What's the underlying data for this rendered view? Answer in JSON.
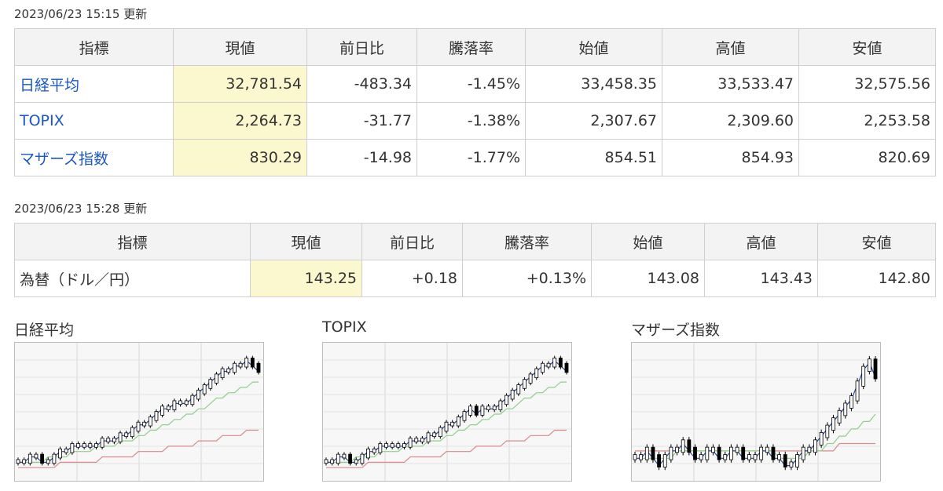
{
  "stock_section": {
    "timestamp": "2023/06/23 15:15 更新",
    "headers": [
      "指標",
      "現値",
      "前日比",
      "騰落率",
      "始値",
      "高値",
      "安値"
    ],
    "rows": [
      {
        "name": "日経平均",
        "current": "32,781.54",
        "change": "-483.34",
        "rate": "-1.45%",
        "open": "33,458.35",
        "high": "33,533.47",
        "low": "32,575.56"
      },
      {
        "name": "TOPIX",
        "current": "2,264.73",
        "change": "-31.77",
        "rate": "-1.38%",
        "open": "2,307.67",
        "high": "2,309.60",
        "low": "2,253.58"
      },
      {
        "name": "マザーズ指数",
        "current": "830.29",
        "change": "-14.98",
        "rate": "-1.77%",
        "open": "854.51",
        "high": "854.93",
        "low": "820.69"
      }
    ]
  },
  "fx_section": {
    "timestamp": "2023/06/23 15:28 更新",
    "headers": [
      "指標",
      "現値",
      "前日比",
      "騰落率",
      "始値",
      "高値",
      "安値"
    ],
    "row": {
      "name": "為替（ドル／円）",
      "current": "143.25",
      "change": "+0.18",
      "rate": "+0.13%",
      "open": "143.08",
      "high": "143.43",
      "low": "142.80"
    }
  },
  "charts": {
    "nikkei_title": "日経平均",
    "topix_title": "TOPIX",
    "mothers_title": "マザーズ指数"
  },
  "colors": {
    "link": "#1a56c4",
    "negative": "#1a56c4",
    "positive": "#e0201a",
    "current_bg": "#fbf7cf",
    "header_bg": "#f3f3f3",
    "ma_short": "#2a4a9e",
    "ma_mid": "#8fcf8a",
    "ma_long": "#d98a8a"
  },
  "chart_data": [
    {
      "type": "line",
      "series": [
        {
          "values": [
            2,
            2,
            3,
            3,
            2,
            2,
            3,
            4,
            4,
            5,
            5,
            5,
            5,
            5,
            6,
            6,
            6,
            7,
            7,
            8,
            9,
            9,
            10,
            11,
            12,
            12,
            13,
            13,
            13,
            14,
            15,
            16,
            17,
            18,
            19,
            19,
            20,
            20,
            21,
            20,
            19
          ]
        },
        {
          "values": [
            2,
            2,
            2,
            2,
            2,
            3,
            3,
            3,
            3,
            4,
            4,
            4,
            4,
            5,
            5,
            5,
            5,
            6,
            6,
            6,
            7,
            7,
            8,
            8,
            9,
            9,
            10,
            10,
            11,
            11,
            12,
            12,
            13,
            14,
            14,
            15,
            15,
            16,
            16,
            17,
            17
          ]
        },
        {
          "values": [
            1,
            1,
            1,
            1,
            1,
            1,
            1,
            2,
            2,
            2,
            2,
            2,
            2,
            2,
            3,
            3,
            3,
            3,
            3,
            3,
            4,
            4,
            4,
            4,
            4,
            5,
            5,
            5,
            5,
            5,
            6,
            6,
            6,
            6,
            7,
            7,
            7,
            7,
            8,
            8,
            8
          ]
        }
      ]
    },
    {
      "type": "line",
      "series": [
        {
          "values": [
            2,
            2,
            3,
            3,
            2,
            2,
            3,
            4,
            4,
            5,
            5,
            5,
            5,
            5,
            6,
            6,
            6,
            7,
            7,
            8,
            9,
            9,
            10,
            11,
            12,
            11,
            12,
            12,
            12,
            13,
            14,
            15,
            16,
            17,
            18,
            19,
            20,
            20,
            21,
            20,
            19
          ]
        },
        {
          "values": [
            2,
            2,
            2,
            2,
            2,
            3,
            3,
            3,
            3,
            4,
            4,
            4,
            4,
            5,
            5,
            5,
            5,
            6,
            6,
            6,
            7,
            7,
            8,
            8,
            9,
            9,
            10,
            10,
            11,
            11,
            12,
            12,
            13,
            14,
            14,
            15,
            15,
            16,
            16,
            17,
            17
          ]
        },
        {
          "values": [
            1,
            1,
            1,
            1,
            1,
            1,
            1,
            2,
            2,
            2,
            2,
            2,
            2,
            2,
            3,
            3,
            3,
            3,
            3,
            3,
            4,
            4,
            4,
            4,
            4,
            5,
            5,
            5,
            5,
            5,
            6,
            6,
            6,
            6,
            7,
            7,
            7,
            7,
            8,
            8,
            8
          ]
        }
      ]
    },
    {
      "type": "line",
      "series": [
        {
          "values": [
            5,
            5,
            6,
            5,
            4,
            5,
            6,
            6,
            7,
            6,
            5,
            5,
            6,
            6,
            5,
            5,
            6,
            6,
            5,
            5,
            5,
            6,
            6,
            5,
            5,
            4,
            4,
            5,
            6,
            6,
            7,
            8,
            9,
            10,
            11,
            12,
            13,
            15,
            17,
            18,
            16
          ]
        },
        {
          "values": [
            5,
            5,
            5,
            5,
            5,
            5,
            5,
            6,
            6,
            6,
            6,
            6,
            6,
            6,
            6,
            6,
            6,
            6,
            6,
            6,
            6,
            6,
            6,
            6,
            5,
            5,
            5,
            5,
            5,
            6,
            6,
            6,
            7,
            7,
            8,
            8,
            9,
            9,
            10,
            10,
            11
          ]
        },
        {
          "values": [
            6,
            6,
            6,
            6,
            6,
            6,
            6,
            6,
            6,
            6,
            6,
            6,
            6,
            6,
            6,
            6,
            6,
            6,
            6,
            6,
            6,
            6,
            6,
            6,
            6,
            6,
            6,
            6,
            6,
            6,
            6,
            6,
            6,
            6,
            7,
            7,
            7,
            7,
            7,
            7,
            7
          ]
        }
      ]
    }
  ]
}
